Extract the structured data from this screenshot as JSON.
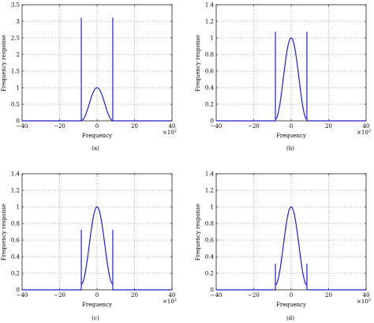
{
  "chart_data": [
    {
      "type": "line",
      "panel_label": "(a)",
      "xlabel": "Frequency",
      "ylabel": "Frequency response",
      "x_multiplier": "×10",
      "x_multiplier_exp": "2",
      "xlim": [
        -40,
        40
      ],
      "ylim": [
        0,
        3.5
      ],
      "xticks": [
        -40,
        -20,
        0,
        20,
        40
      ],
      "yticks": [
        0,
        0.5,
        1,
        1.5,
        2,
        2.5,
        3,
        3.5
      ],
      "ytick_labels": [
        "0",
        "0.5",
        "1",
        "1.5",
        "2",
        "2.5",
        "3",
        "3.5"
      ],
      "grid": true,
      "series": [
        {
          "color": "#1f1fbf",
          "peak": 1.0,
          "band_edge": 8.4,
          "edge_level": 0.01,
          "spike_height": 3.1
        }
      ]
    },
    {
      "type": "line",
      "panel_label": "(b)",
      "xlabel": "Frequency",
      "ylabel": "Frequency response",
      "x_multiplier": "×10",
      "x_multiplier_exp": "2",
      "xlim": [
        -40,
        40
      ],
      "ylim": [
        0,
        1.4
      ],
      "xticks": [
        -40,
        -20,
        0,
        20,
        40
      ],
      "yticks": [
        0,
        0.2,
        0.4,
        0.6,
        0.8,
        1,
        1.2,
        1.4
      ],
      "ytick_labels": [
        "0",
        "0.2",
        "0.4",
        "0.6",
        "0.8",
        "1",
        "1.2",
        "1.4"
      ],
      "grid": true,
      "series": [
        {
          "color": "#1f1fbf",
          "peak": 1.0,
          "band_edge": 8.4,
          "edge_level": 0.02,
          "spike_height": 1.07
        }
      ]
    },
    {
      "type": "line",
      "panel_label": "(c)",
      "xlabel": "Frequency",
      "ylabel": "Frequency response",
      "x_multiplier": "×10",
      "x_multiplier_exp": "2",
      "xlim": [
        -40,
        40
      ],
      "ylim": [
        0,
        1.4
      ],
      "xticks": [
        -40,
        -20,
        0,
        20,
        40
      ],
      "yticks": [
        0,
        0.2,
        0.4,
        0.6,
        0.8,
        1,
        1.2,
        1.4
      ],
      "ytick_labels": [
        "0",
        "0.2",
        "0.4",
        "0.6",
        "0.8",
        "1",
        "1.2",
        "1.4"
      ],
      "grid": true,
      "series": [
        {
          "color": "#1f1fbf",
          "peak": 1.0,
          "band_edge": 8.4,
          "edge_level": 0.07,
          "spike_height": 0.72
        }
      ]
    },
    {
      "type": "line",
      "panel_label": "(d)",
      "xlabel": "Frequency",
      "ylabel": "Frequency response",
      "x_multiplier": "×10",
      "x_multiplier_exp": "2",
      "xlim": [
        -40,
        40
      ],
      "ylim": [
        0,
        1.4
      ],
      "xticks": [
        -40,
        -20,
        0,
        20,
        40
      ],
      "yticks": [
        0,
        0.2,
        0.4,
        0.6,
        0.8,
        1,
        1.2,
        1.4
      ],
      "ytick_labels": [
        "0",
        "0.2",
        "0.4",
        "0.6",
        "0.8",
        "1",
        "1.2",
        "1.4"
      ],
      "grid": true,
      "series": [
        {
          "color": "#1f1fbf",
          "peak": 1.0,
          "band_edge": 8.4,
          "edge_level": 0.06,
          "spike_height": 0.31
        }
      ]
    }
  ]
}
